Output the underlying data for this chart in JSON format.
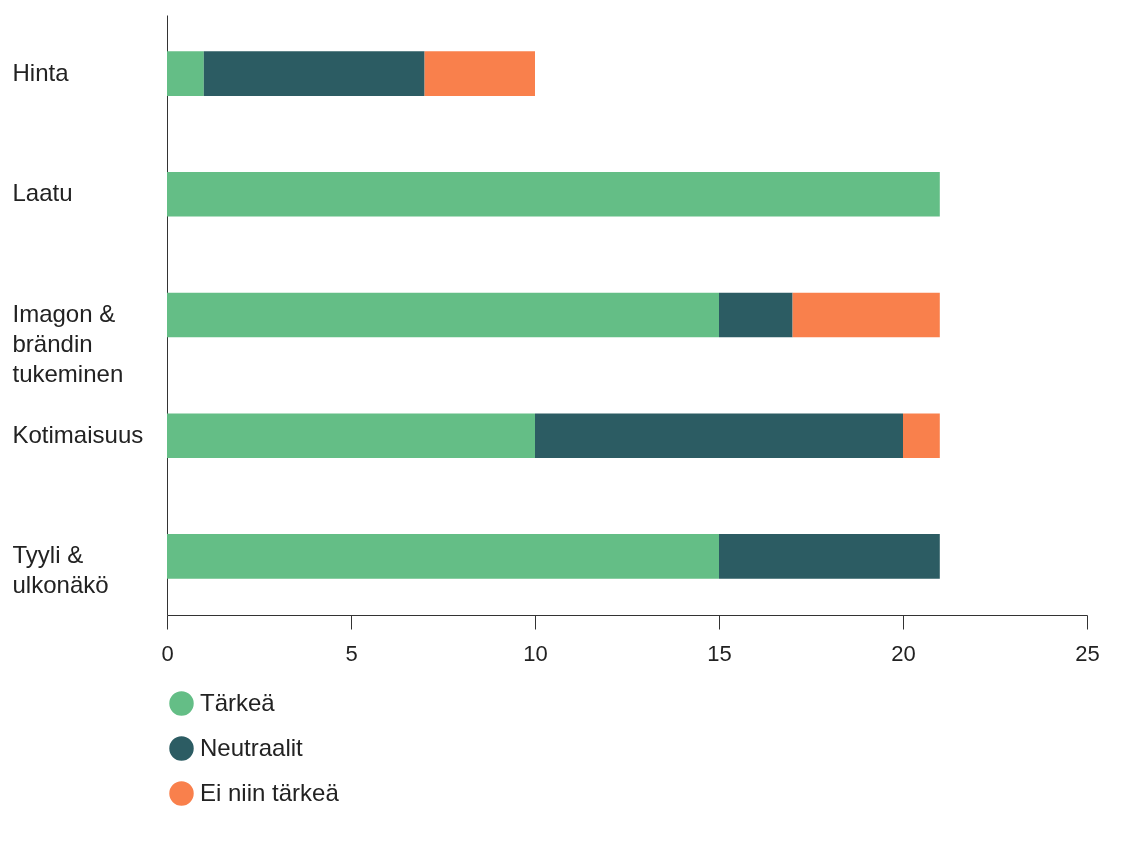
{
  "chart_data": {
    "type": "bar",
    "orientation": "horizontal",
    "stacked": true,
    "categories": [
      "Hinta",
      "Laatu",
      "Imagon & brändin tukeminen",
      "Kotimaisuus",
      "Tyyli & ulkonäkö"
    ],
    "series": [
      {
        "name": "Tärkeä",
        "color": "#64be86",
        "values": [
          1,
          21,
          15,
          10,
          15
        ]
      },
      {
        "name": "Neutraalit",
        "color": "#2c5c63",
        "values": [
          6,
          0,
          2,
          10,
          6
        ]
      },
      {
        "name": "Ei niin tärkeä",
        "color": "#f9804c",
        "values": [
          3,
          0,
          4,
          1,
          0
        ]
      }
    ],
    "xlim": [
      0,
      25
    ],
    "xticks": [
      0,
      5,
      10,
      15,
      20,
      25
    ],
    "grid": false,
    "legend": "bottom"
  }
}
